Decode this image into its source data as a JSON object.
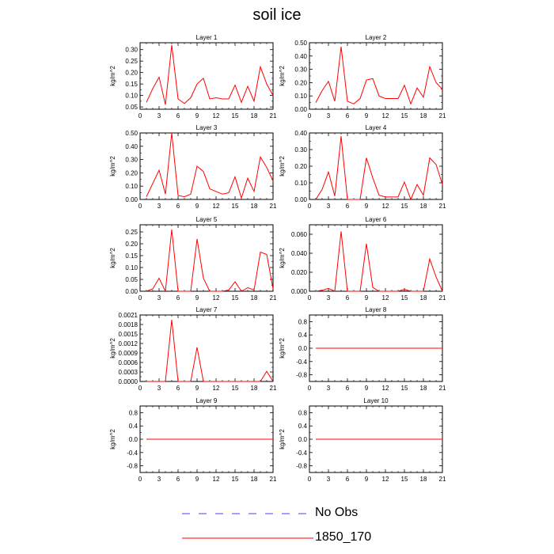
{
  "figure": {
    "title": "soil ice"
  },
  "legend": [
    {
      "name": "No Obs",
      "color": "#4040ff",
      "style": "dashed"
    },
    {
      "name": "1850_170",
      "color": "#ff0000",
      "style": "solid"
    }
  ],
  "chart_data": [
    {
      "type": "line",
      "title": "Layer 1",
      "ylabel": "kg/m^2",
      "xlabel": "",
      "xlim": [
        0,
        21
      ],
      "xticks": [
        0,
        3,
        6,
        9,
        12,
        15,
        18,
        21
      ],
      "ylim": [
        0.04,
        0.33
      ],
      "yticks": [
        0.05,
        0.1,
        0.15,
        0.2,
        0.25,
        0.3
      ],
      "ytick_labels": [
        "0.05",
        "0.10",
        "0.15",
        "0.20",
        "0.25",
        "0.30"
      ],
      "series": [
        {
          "color": "#ff0000",
          "x": [
            1,
            2,
            3,
            4,
            5,
            6,
            7,
            8,
            9,
            10,
            11,
            12,
            13,
            14,
            15,
            16,
            17,
            18,
            19,
            20,
            21
          ],
          "y": [
            0.07,
            0.13,
            0.18,
            0.06,
            0.32,
            0.085,
            0.065,
            0.09,
            0.15,
            0.175,
            0.085,
            0.09,
            0.085,
            0.085,
            0.145,
            0.07,
            0.14,
            0.075,
            0.225,
            0.15,
            0.1
          ]
        }
      ]
    },
    {
      "type": "line",
      "title": "Layer 2",
      "ylabel": "kg/m^2",
      "xlabel": "",
      "xlim": [
        0,
        21
      ],
      "xticks": [
        0,
        3,
        6,
        9,
        12,
        15,
        18,
        21
      ],
      "ylim": [
        0.0,
        0.5
      ],
      "yticks": [
        0.0,
        0.1,
        0.2,
        0.3,
        0.4,
        0.5
      ],
      "ytick_labels": [
        "0.00",
        "0.10",
        "0.20",
        "0.30",
        "0.40",
        "0.50"
      ],
      "series": [
        {
          "color": "#ff0000",
          "x": [
            1,
            2,
            3,
            4,
            5,
            6,
            7,
            8,
            9,
            10,
            11,
            12,
            13,
            14,
            15,
            16,
            17,
            18,
            19,
            20,
            21
          ],
          "y": [
            0.05,
            0.14,
            0.21,
            0.06,
            0.47,
            0.06,
            0.04,
            0.08,
            0.22,
            0.23,
            0.1,
            0.08,
            0.08,
            0.08,
            0.18,
            0.04,
            0.16,
            0.09,
            0.32,
            0.2,
            0.15
          ]
        }
      ]
    },
    {
      "type": "line",
      "title": "Layer 3",
      "ylabel": "kg/m^2",
      "xlabel": "",
      "xlim": [
        0,
        21
      ],
      "xticks": [
        0,
        3,
        6,
        9,
        12,
        15,
        18,
        21
      ],
      "ylim": [
        0.0,
        0.5
      ],
      "yticks": [
        0.0,
        0.1,
        0.2,
        0.3,
        0.4,
        0.5
      ],
      "ytick_labels": [
        "0.00",
        "0.10",
        "0.20",
        "0.30",
        "0.40",
        "0.50"
      ],
      "series": [
        {
          "color": "#ff0000",
          "x": [
            1,
            2,
            3,
            4,
            5,
            6,
            7,
            8,
            9,
            10,
            11,
            12,
            13,
            14,
            15,
            16,
            17,
            18,
            19,
            20,
            21
          ],
          "y": [
            0.02,
            0.12,
            0.22,
            0.04,
            0.5,
            0.03,
            0.02,
            0.04,
            0.25,
            0.21,
            0.08,
            0.06,
            0.04,
            0.05,
            0.17,
            0.01,
            0.16,
            0.06,
            0.32,
            0.24,
            0.14
          ]
        }
      ]
    },
    {
      "type": "line",
      "title": "Layer 4",
      "ylabel": "kg/m^2",
      "xlabel": "",
      "xlim": [
        0,
        21
      ],
      "xticks": [
        0,
        3,
        6,
        9,
        12,
        15,
        18,
        21
      ],
      "ylim": [
        0.0,
        0.4
      ],
      "yticks": [
        0.0,
        0.1,
        0.2,
        0.3,
        0.4
      ],
      "ytick_labels": [
        "0.00",
        "0.10",
        "0.20",
        "0.30",
        "0.40"
      ],
      "series": [
        {
          "color": "#ff0000",
          "x": [
            1,
            2,
            3,
            4,
            5,
            6,
            7,
            8,
            9,
            10,
            11,
            12,
            13,
            14,
            15,
            16,
            17,
            18,
            19,
            20,
            21
          ],
          "y": [
            0.0,
            0.06,
            0.165,
            0.02,
            0.38,
            0.0,
            0.0,
            0.0,
            0.25,
            0.13,
            0.025,
            0.015,
            0.015,
            0.015,
            0.105,
            0.0,
            0.09,
            0.025,
            0.25,
            0.21,
            0.09
          ]
        }
      ]
    },
    {
      "type": "line",
      "title": "Layer 5",
      "ylabel": "kg/m^2",
      "xlabel": "",
      "xlim": [
        0,
        21
      ],
      "xticks": [
        0,
        3,
        6,
        9,
        12,
        15,
        18,
        21
      ],
      "ylim": [
        0.0,
        0.28
      ],
      "yticks": [
        0.0,
        0.05,
        0.1,
        0.15,
        0.2,
        0.25
      ],
      "ytick_labels": [
        "0.00",
        "0.05",
        "0.10",
        "0.15",
        "0.20",
        "0.25"
      ],
      "series": [
        {
          "color": "#ff0000",
          "x": [
            1,
            2,
            3,
            4,
            5,
            6,
            7,
            8,
            9,
            10,
            11,
            12,
            13,
            14,
            15,
            16,
            17,
            18,
            19,
            20,
            21
          ],
          "y": [
            0.0,
            0.01,
            0.055,
            0.0,
            0.26,
            0.0,
            0.0,
            0.0,
            0.22,
            0.055,
            0.0,
            0.0,
            0.0,
            0.005,
            0.04,
            0.0,
            0.015,
            0.005,
            0.165,
            0.155,
            0.01
          ]
        }
      ]
    },
    {
      "type": "line",
      "title": "Layer 6",
      "ylabel": "kg/m^2",
      "xlabel": "",
      "xlim": [
        0,
        21
      ],
      "xticks": [
        0,
        3,
        6,
        9,
        12,
        15,
        18,
        21
      ],
      "ylim": [
        0.0,
        0.07
      ],
      "yticks": [
        0.0,
        0.02,
        0.04,
        0.06
      ],
      "ytick_labels": [
        "0.000",
        "0.020",
        "0.040",
        "0.060"
      ],
      "series": [
        {
          "color": "#ff0000",
          "x": [
            1,
            2,
            3,
            4,
            5,
            6,
            7,
            8,
            9,
            10,
            11,
            12,
            13,
            14,
            15,
            16,
            17,
            18,
            19,
            20,
            21
          ],
          "y": [
            0.0,
            0.001,
            0.003,
            0.0,
            0.063,
            0.0,
            0.0,
            0.0,
            0.05,
            0.004,
            0.0,
            0.0,
            0.0,
            0.0,
            0.002,
            0.0,
            0.0,
            0.0,
            0.034,
            0.015,
            0.0
          ]
        }
      ]
    },
    {
      "type": "line",
      "title": "Layer 7",
      "ylabel": "kg/m^2",
      "xlabel": "",
      "xlim": [
        0,
        21
      ],
      "xticks": [
        0,
        3,
        6,
        9,
        12,
        15,
        18,
        21
      ],
      "ylim": [
        0.0,
        0.0021
      ],
      "yticks": [
        0.0,
        0.0003,
        0.0006,
        0.0009,
        0.0012,
        0.0015,
        0.0018,
        0.0021
      ],
      "ytick_labels": [
        "0.0000",
        "0.0003",
        "0.0006",
        "0.0009",
        "0.0012",
        "0.0015",
        "0.0018",
        "0.0021"
      ],
      "series": [
        {
          "color": "#ff0000",
          "x": [
            1,
            2,
            3,
            4,
            5,
            6,
            7,
            8,
            9,
            10,
            11,
            12,
            13,
            14,
            15,
            16,
            17,
            18,
            19,
            20,
            21
          ],
          "y": [
            0.0,
            0.0,
            0.0,
            0.0,
            0.00195,
            0.0,
            0.0,
            0.0,
            0.00108,
            0.0,
            0.0,
            0.0,
            0.0,
            0.0,
            0.0,
            0.0,
            0.0,
            0.0,
            0.0,
            0.00032,
            0.0
          ]
        }
      ]
    },
    {
      "type": "line",
      "title": "Layer 8",
      "ylabel": "kg/m^2",
      "xlabel": "",
      "xlim": [
        0,
        21
      ],
      "xticks": [
        0,
        3,
        6,
        9,
        12,
        15,
        18,
        21
      ],
      "ylim": [
        -1.0,
        1.0
      ],
      "yticks": [
        -0.8,
        -0.4,
        0.0,
        0.4,
        0.8
      ],
      "ytick_labels": [
        "-0.8",
        "-0.4",
        "0.0",
        "0.4",
        "0.8"
      ],
      "series": [
        {
          "color": "#ff0000",
          "x": [
            1,
            2,
            3,
            4,
            5,
            6,
            7,
            8,
            9,
            10,
            11,
            12,
            13,
            14,
            15,
            16,
            17,
            18,
            19,
            20,
            21
          ],
          "y": [
            0,
            0,
            0,
            0,
            0,
            0,
            0,
            0,
            0,
            0,
            0,
            0,
            0,
            0,
            0,
            0,
            0,
            0,
            0,
            0,
            0
          ]
        }
      ]
    },
    {
      "type": "line",
      "title": "Layer 9",
      "ylabel": "kg/m^2",
      "xlabel": "",
      "xlim": [
        0,
        21
      ],
      "xticks": [
        0,
        3,
        6,
        9,
        12,
        15,
        18,
        21
      ],
      "ylim": [
        -1.0,
        1.0
      ],
      "yticks": [
        -0.8,
        -0.4,
        0.0,
        0.4,
        0.8
      ],
      "ytick_labels": [
        "-0.8",
        "-0.4",
        "0.0",
        "0.4",
        "0.8"
      ],
      "series": [
        {
          "color": "#ff0000",
          "x": [
            1,
            2,
            3,
            4,
            5,
            6,
            7,
            8,
            9,
            10,
            11,
            12,
            13,
            14,
            15,
            16,
            17,
            18,
            19,
            20,
            21
          ],
          "y": [
            0,
            0,
            0,
            0,
            0,
            0,
            0,
            0,
            0,
            0,
            0,
            0,
            0,
            0,
            0,
            0,
            0,
            0,
            0,
            0,
            0
          ]
        }
      ]
    },
    {
      "type": "line",
      "title": "Layer 10",
      "ylabel": "kg/m^2",
      "xlabel": "",
      "xlim": [
        0,
        21
      ],
      "xticks": [
        0,
        3,
        6,
        9,
        12,
        15,
        18,
        21
      ],
      "ylim": [
        -1.0,
        1.0
      ],
      "yticks": [
        -0.8,
        -0.4,
        0.0,
        0.4,
        0.8
      ],
      "ytick_labels": [
        "-0.8",
        "-0.4",
        "0.0",
        "0.4",
        "0.8"
      ],
      "series": [
        {
          "color": "#ff0000",
          "x": [
            1,
            2,
            3,
            4,
            5,
            6,
            7,
            8,
            9,
            10,
            11,
            12,
            13,
            14,
            15,
            16,
            17,
            18,
            19,
            20,
            21
          ],
          "y": [
            0,
            0,
            0,
            0,
            0,
            0,
            0,
            0,
            0,
            0,
            0,
            0,
            0,
            0,
            0,
            0,
            0,
            0,
            0,
            0,
            0
          ]
        }
      ]
    }
  ]
}
